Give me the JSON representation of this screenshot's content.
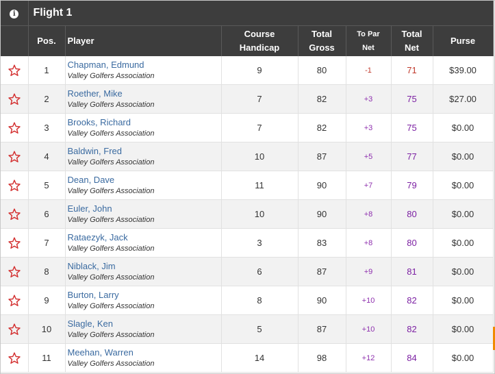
{
  "flight": {
    "title": "Flight 1",
    "info_icon": "info-icon"
  },
  "columns": {
    "pos": "Pos.",
    "player": "Player",
    "handicap": [
      "Course",
      "Handicap"
    ],
    "gross": [
      "Total",
      "Gross"
    ],
    "topar": [
      "To Par",
      "Net"
    ],
    "net": [
      "Total",
      "Net"
    ],
    "purse": "Purse"
  },
  "colors": {
    "header_bg": "#3d3d3d",
    "player_link": "#3a6aa0",
    "under_par": "#c0392b",
    "over_par": "#8e2fae",
    "net": "#7b1fa2",
    "star": "#d32f2f"
  },
  "rows": [
    {
      "pos": "1",
      "name": "Chapman, Edmund",
      "club": "Valley Golfers Association",
      "handicap": "9",
      "gross": "80",
      "topar": "-1",
      "net": "71",
      "purse": "$39.00"
    },
    {
      "pos": "2",
      "name": "Roether, Mike",
      "club": "Valley Golfers Association",
      "handicap": "7",
      "gross": "82",
      "topar": "+3",
      "net": "75",
      "purse": "$27.00"
    },
    {
      "pos": "3",
      "name": "Brooks, Richard",
      "club": "Valley Golfers Association",
      "handicap": "7",
      "gross": "82",
      "topar": "+3",
      "net": "75",
      "purse": "$0.00"
    },
    {
      "pos": "4",
      "name": "Baldwin, Fred",
      "club": "Valley Golfers Association",
      "handicap": "10",
      "gross": "87",
      "topar": "+5",
      "net": "77",
      "purse": "$0.00"
    },
    {
      "pos": "5",
      "name": "Dean, Dave",
      "club": "Valley Golfers Association",
      "handicap": "11",
      "gross": "90",
      "topar": "+7",
      "net": "79",
      "purse": "$0.00"
    },
    {
      "pos": "6",
      "name": "Euler, John",
      "club": "Valley Golfers Association",
      "handicap": "10",
      "gross": "90",
      "topar": "+8",
      "net": "80",
      "purse": "$0.00"
    },
    {
      "pos": "7",
      "name": "Rataezyk, Jack",
      "club": "Valley Golfers Association",
      "handicap": "3",
      "gross": "83",
      "topar": "+8",
      "net": "80",
      "purse": "$0.00"
    },
    {
      "pos": "8",
      "name": "Niblack, Jim",
      "club": "Valley Golfers Association",
      "handicap": "6",
      "gross": "87",
      "topar": "+9",
      "net": "81",
      "purse": "$0.00"
    },
    {
      "pos": "9",
      "name": "Burton, Larry",
      "club": "Valley Golfers Association",
      "handicap": "8",
      "gross": "90",
      "topar": "+10",
      "net": "82",
      "purse": "$0.00"
    },
    {
      "pos": "10",
      "name": "Slagle, Ken",
      "club": "Valley Golfers Association",
      "handicap": "5",
      "gross": "87",
      "topar": "+10",
      "net": "82",
      "purse": "$0.00"
    },
    {
      "pos": "11",
      "name": "Meehan, Warren",
      "club": "Valley Golfers Association",
      "handicap": "14",
      "gross": "98",
      "topar": "+12",
      "net": "84",
      "purse": "$0.00"
    }
  ]
}
